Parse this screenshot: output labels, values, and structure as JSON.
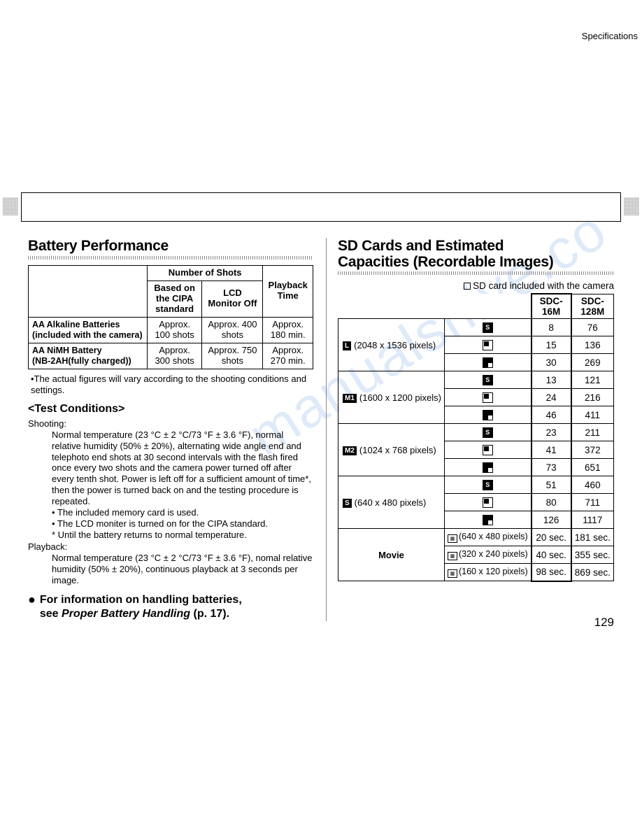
{
  "header": {
    "specifications": "Specifications"
  },
  "page_number": "129",
  "watermark": "manualshive.co",
  "battery": {
    "title": "Battery Performance",
    "headers": {
      "number_of_shots": "Number of Shots",
      "cipa": "Based on the CIPA standard",
      "lcd_off": "LCD Monitor Off",
      "playback": "Playback Time"
    },
    "rows": [
      {
        "label_l1": "AA Alkaline Batteries",
        "label_l2": "(included with the camera)",
        "cipa": "Approx. 100 shots",
        "lcd": "Approx. 400 shots",
        "playback": "Approx. 180 min."
      },
      {
        "label_l1": "AA NiMH Battery",
        "label_l2": "(NB-2AH(fully charged))",
        "cipa": "Approx. 300 shots",
        "lcd": "Approx. 750 shots",
        "playback": "Approx. 270 min."
      }
    ],
    "footnote": "•The actual figures will vary according to the shooting conditions and settings.",
    "test_conditions_title": "<Test Conditions>",
    "shooting_label": "Shooting:",
    "shooting_text": "Normal temperature (23 °C ± 2 °C/73 °F ± 3.6 °F), normal relative humidity (50% ± 20%), alternating wide angle end and telephoto end shots at 30 second intervals with the flash fired once every two shots and the camera power turned off after every tenth shot. Power is left off for a sufficient amount of time*, then the power is turned back on and the testing procedure is repeated.",
    "shooting_bullets": [
      "• The included memory card is used.",
      "• The LCD moniter is turned on for the CIPA standard.",
      "* Until the battery returns to normal temperature."
    ],
    "playback_label": "Playback:",
    "playback_text": "Normal temperature (23 °C ± 2 °C/73 °F ± 3.6 °F), nomal relative humidity (50% ± 20%), continuous playback at 3 seconds per image.",
    "info_line1": "For information on handling batteries,",
    "info_line2a": "see ",
    "info_line2b": "Proper Battery Handling",
    "info_line2c": " (p. 17)."
  },
  "sd": {
    "title_l1": "SD Cards and Estimated",
    "title_l2": "Capacities (Recordable Images)",
    "note": "SD card included with the camera",
    "col1": "SDC-16M",
    "col2": "SDC-128M",
    "groups": [
      {
        "badge": "L",
        "label": "(2048 x 1536 pixels)",
        "rows": [
          [
            "S",
            "8",
            "76"
          ],
          [
            "N",
            "15",
            "136"
          ],
          [
            "F",
            "30",
            "269"
          ]
        ]
      },
      {
        "badge": "M1",
        "label": "(1600 x 1200 pixels)",
        "rows": [
          [
            "S",
            "13",
            "121"
          ],
          [
            "N",
            "24",
            "216"
          ],
          [
            "F",
            "46",
            "411"
          ]
        ]
      },
      {
        "badge": "M2",
        "label": "(1024 x 768 pixels)",
        "rows": [
          [
            "S",
            "23",
            "211"
          ],
          [
            "N",
            "41",
            "372"
          ],
          [
            "F",
            "73",
            "651"
          ]
        ]
      },
      {
        "badge": "S",
        "label": "(640 x 480 pixels)",
        "rows": [
          [
            "S",
            "51",
            "460"
          ],
          [
            "N",
            "80",
            "711"
          ],
          [
            "F",
            "126",
            "1117"
          ]
        ]
      }
    ],
    "movie_label": "Movie",
    "movie_rows": [
      {
        "size": "(640 x 480 pixels)",
        "c1": "20 sec.",
        "c2": "181 sec."
      },
      {
        "size": "(320 x 240 pixels)",
        "c1": "40 sec.",
        "c2": "355 sec."
      },
      {
        "size": "(160 x 120 pixels)",
        "c1": "98 sec.",
        "c2": "869 sec."
      }
    ]
  }
}
